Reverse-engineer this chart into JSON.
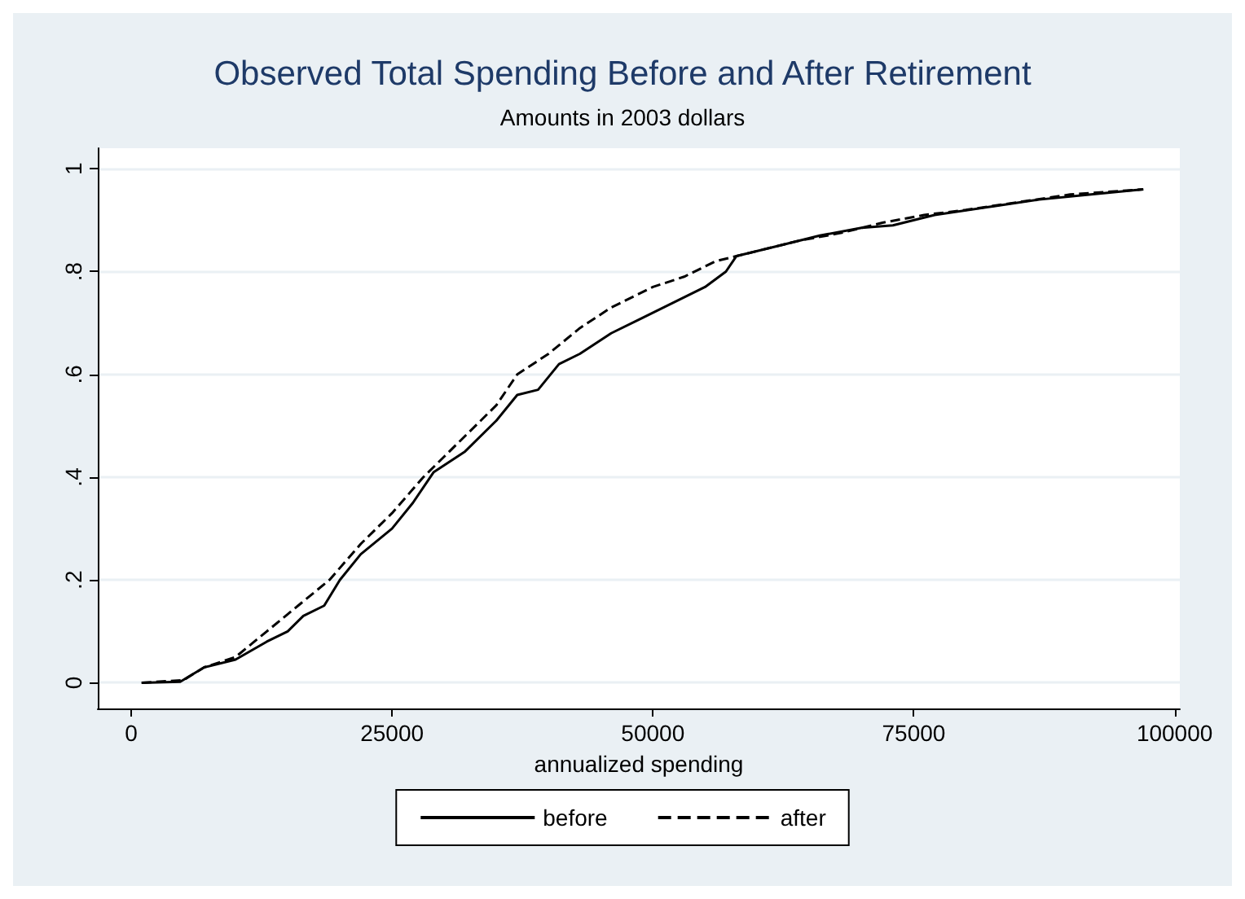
{
  "chart_data": {
    "type": "line",
    "title": "Observed Total Spending Before and After Retirement",
    "subtitle": "Amounts in 2003 dollars",
    "xlabel": "annualized spending",
    "xlim": [
      -3200,
      100500
    ],
    "xticks": [
      0,
      25000,
      50000,
      75000,
      100000
    ],
    "ylim": [
      -0.05,
      1.04
    ],
    "yticks": [
      {
        "value": 0,
        "label": "0"
      },
      {
        "value": 0.2,
        "label": ".2"
      },
      {
        "value": 0.4,
        "label": ".4"
      },
      {
        "value": 0.6,
        "label": ".6"
      },
      {
        "value": 0.8,
        "label": ".8"
      },
      {
        "value": 1,
        "label": "1"
      }
    ],
    "grid": "y",
    "legend": "bottom",
    "marker": "none",
    "series": [
      {
        "name": "before",
        "color": "#000000",
        "line_style": "solid",
        "x": [
          1000,
          4700,
          7000,
          10000,
          13000,
          15000,
          16500,
          18500,
          20000,
          22000,
          25000,
          27000,
          29000,
          32000,
          35000,
          37000,
          39000,
          41000,
          43000,
          46000,
          49000,
          52000,
          55000,
          57000,
          58000,
          62000,
          66000,
          70000,
          73000,
          77000,
          82000,
          87000,
          92000,
          97000
        ],
        "values": [
          0,
          0.002,
          0.03,
          0.045,
          0.08,
          0.1,
          0.13,
          0.15,
          0.2,
          0.25,
          0.3,
          0.35,
          0.41,
          0.45,
          0.51,
          0.56,
          0.57,
          0.62,
          0.64,
          0.68,
          0.71,
          0.74,
          0.77,
          0.8,
          0.83,
          0.85,
          0.87,
          0.885,
          0.89,
          0.91,
          0.925,
          0.94,
          0.95,
          0.96
        ]
      },
      {
        "name": "after",
        "color": "#000000",
        "line_style": "dashed",
        "x": [
          1000,
          5000,
          7000,
          10000,
          13000,
          16000,
          19000,
          22000,
          25000,
          28000,
          30000,
          33000,
          35000,
          37000,
          40000,
          43000,
          46000,
          50000,
          53000,
          56000,
          60000,
          64000,
          68000,
          72000,
          76000,
          80000,
          85000,
          90000,
          97000
        ],
        "values": [
          0,
          0.005,
          0.03,
          0.05,
          0.1,
          0.15,
          0.2,
          0.27,
          0.33,
          0.4,
          0.44,
          0.5,
          0.54,
          0.6,
          0.64,
          0.69,
          0.73,
          0.77,
          0.79,
          0.82,
          0.84,
          0.86,
          0.875,
          0.895,
          0.91,
          0.92,
          0.935,
          0.95,
          0.96
        ]
      }
    ]
  }
}
